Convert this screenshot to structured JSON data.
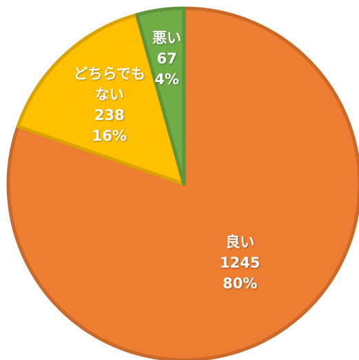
{
  "chart_data": {
    "type": "pie",
    "categories": [
      "良い",
      "どちらでもない",
      "悪い"
    ],
    "values": [
      1245,
      238,
      67
    ],
    "value_labels": [
      "1245",
      "238",
      "67"
    ],
    "percent_labels": [
      "80%",
      "16%",
      "4%"
    ],
    "colors": [
      "#ED7D31",
      "#FFC000",
      "#70AD47"
    ],
    "start": "top",
    "direction": "clockwise"
  }
}
